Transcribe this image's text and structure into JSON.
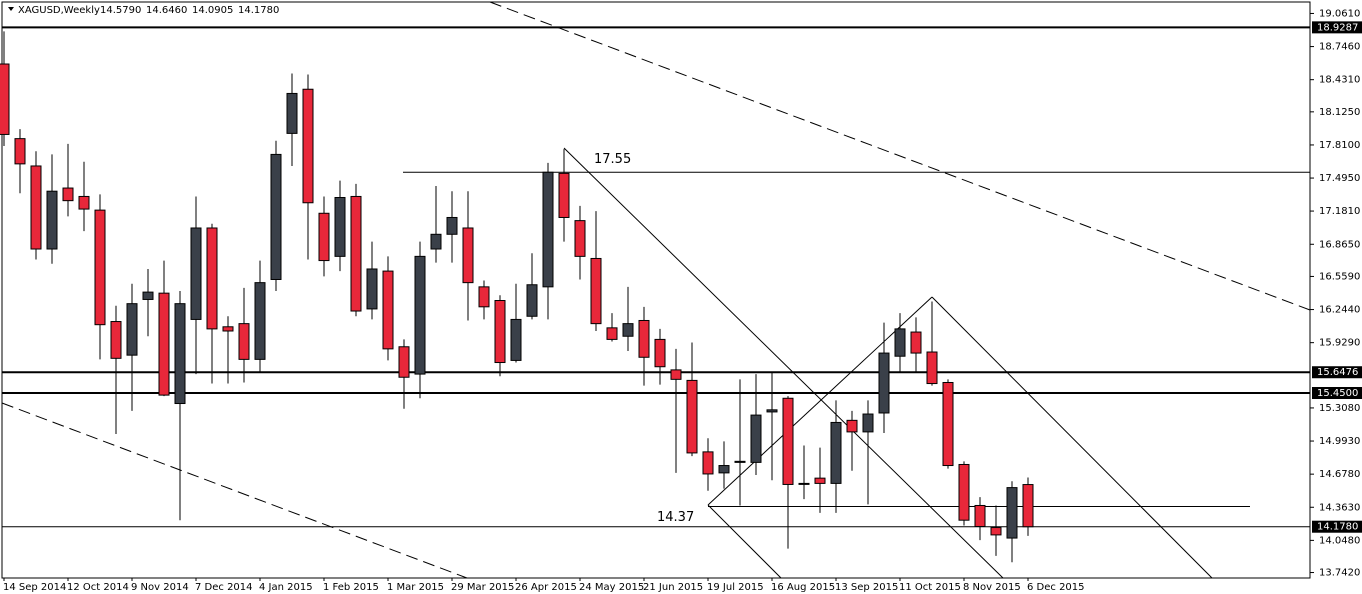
{
  "chart_data": {
    "type": "candlestick",
    "title": "XAGUSD,Weekly",
    "quote": [
      "14.5790",
      "14.6460",
      "14.0905",
      "14.1780"
    ],
    "categories": [
      "14 Sep 2014",
      null,
      null,
      null,
      "12 Oct 2014",
      null,
      null,
      null,
      "9 Nov 2014",
      null,
      null,
      null,
      "7 Dec 2014",
      null,
      null,
      null,
      "4 Jan 2015",
      null,
      null,
      null,
      "1 Feb 2015",
      null,
      null,
      null,
      "1 Mar 2015",
      null,
      null,
      null,
      "29 Mar 2015",
      null,
      null,
      null,
      "26 Apr 2015",
      null,
      null,
      null,
      "24 May 2015",
      null,
      null,
      null,
      "21 Jun 2015",
      null,
      null,
      null,
      "19 Jul 2015",
      null,
      null,
      null,
      "16 Aug 2015",
      null,
      null,
      null,
      "13 Sep 2015",
      null,
      null,
      null,
      "11 Oct 2015",
      null,
      null,
      null,
      "8 Nov 2015",
      null,
      null,
      null,
      "6 Dec 2015"
    ],
    "open": [
      18.58,
      17.87,
      17.61,
      16.82,
      17.4,
      17.32,
      17.19,
      16.13,
      15.81,
      16.34,
      16.4,
      15.35,
      16.15,
      17.02,
      16.08,
      16.11,
      15.77,
      16.53,
      17.92,
      18.34,
      17.16,
      16.75,
      17.32,
      16.25,
      16.61,
      15.89,
      15.63,
      16.82,
      16.96,
      17.02,
      16.46,
      16.33,
      15.76,
      16.18,
      16.46,
      17.54,
      17.09,
      16.73,
      16.07,
      15.99,
      16.14,
      15.96,
      15.67,
      15.57,
      14.89,
      14.69,
      14.79,
      14.79,
      15.27,
      15.4,
      14.59,
      14.64,
      14.59,
      15.19,
      15.08,
      15.26,
      15.8,
      16.03,
      15.84,
      15.55,
      14.77,
      14.38,
      14.17,
      14.07,
      14.579
    ],
    "high": [
      18.89,
      17.96,
      17.75,
      17.72,
      17.82,
      17.65,
      17.34,
      16.28,
      16.49,
      16.63,
      16.71,
      16.42,
      17.32,
      17.06,
      16.18,
      16.45,
      16.71,
      17.85,
      18.49,
      18.48,
      17.32,
      17.47,
      17.44,
      16.89,
      16.75,
      15.96,
      16.89,
      17.42,
      17.37,
      17.37,
      16.52,
      16.38,
      16.49,
      16.78,
      17.64,
      17.77,
      17.23,
      17.18,
      16.21,
      16.46,
      16.27,
      16.06,
      15.87,
      15.93,
      15.02,
      14.99,
      15.58,
      15.63,
      15.64,
      15.42,
      14.95,
      14.93,
      15.38,
      15.28,
      15.38,
      16.12,
      16.21,
      16.17,
      16.32,
      15.58,
      14.8,
      14.46,
      14.38,
      14.61,
      14.646
    ],
    "low": [
      17.8,
      17.35,
      16.72,
      16.68,
      17.13,
      16.99,
      15.77,
      15.06,
      15.28,
      15.99,
      15.42,
      14.24,
      15.63,
      15.54,
      15.54,
      15.55,
      15.65,
      16.42,
      17.61,
      16.72,
      16.56,
      16.61,
      16.18,
      16.15,
      15.76,
      15.3,
      15.4,
      16.69,
      16.69,
      16.14,
      16.15,
      15.61,
      15.74,
      16.15,
      16.15,
      16.89,
      16.53,
      16.04,
      15.94,
      15.85,
      15.52,
      15.53,
      14.69,
      14.85,
      14.52,
      14.54,
      14.38,
      14.67,
      14.62,
      13.97,
      14.44,
      14.31,
      14.31,
      14.71,
      14.39,
      15.07,
      15.64,
      15.64,
      15.52,
      14.73,
      14.19,
      14.05,
      13.9,
      13.84,
      14.0905
    ],
    "close": [
      17.91,
      17.63,
      16.82,
      17.37,
      17.28,
      17.2,
      16.1,
      15.78,
      16.3,
      16.41,
      15.43,
      16.3,
      17.02,
      16.06,
      16.04,
      15.77,
      16.5,
      17.72,
      18.3,
      17.26,
      16.71,
      17.31,
      16.23,
      16.63,
      15.87,
      15.6,
      16.75,
      16.96,
      17.12,
      16.5,
      16.27,
      15.74,
      16.15,
      16.48,
      17.55,
      17.12,
      16.75,
      16.11,
      15.96,
      16.11,
      15.79,
      15.7,
      15.58,
      14.88,
      14.68,
      14.76,
      14.8,
      15.24,
      15.29,
      14.58,
      14.59,
      14.59,
      15.17,
      15.08,
      15.25,
      15.83,
      16.06,
      15.83,
      15.54,
      14.76,
      14.24,
      14.18,
      14.1,
      14.55,
      14.178
    ],
    "up_color": "#3a4049",
    "down_color": "#e8283a",
    "ylim": [
      13.69,
      19.17
    ],
    "yticks": [
      {
        "value": 19.061,
        "label": "19.0610"
      },
      {
        "value": 18.746,
        "label": "18.7460"
      },
      {
        "value": 18.431,
        "label": "18.4310"
      },
      {
        "value": 18.125,
        "label": "18.1250"
      },
      {
        "value": 17.81,
        "label": "17.8100"
      },
      {
        "value": 17.495,
        "label": "17.4950"
      },
      {
        "value": 17.181,
        "label": "17.1810"
      },
      {
        "value": 16.865,
        "label": "16.8650"
      },
      {
        "value": 16.559,
        "label": "16.5590"
      },
      {
        "value": 16.244,
        "label": "16.2440"
      },
      {
        "value": 15.929,
        "label": "15.9290"
      },
      {
        "value": 15.308,
        "label": "15.3080"
      },
      {
        "value": 14.993,
        "label": "14.9930"
      },
      {
        "value": 14.678,
        "label": "14.6780"
      },
      {
        "value": 14.363,
        "label": "14.3630"
      },
      {
        "value": 14.048,
        "label": "14.0480"
      },
      {
        "value": 13.742,
        "label": "13.7420"
      }
    ],
    "levels": [
      {
        "value": 18.9287,
        "label": "18.9287"
      },
      {
        "value": 15.6476,
        "label": "15.6476"
      },
      {
        "value": 15.45,
        "label": "15.4500"
      },
      {
        "value": 14.178,
        "label": "14.1780"
      }
    ],
    "annotations": [
      17.55,
      14.37
    ]
  }
}
